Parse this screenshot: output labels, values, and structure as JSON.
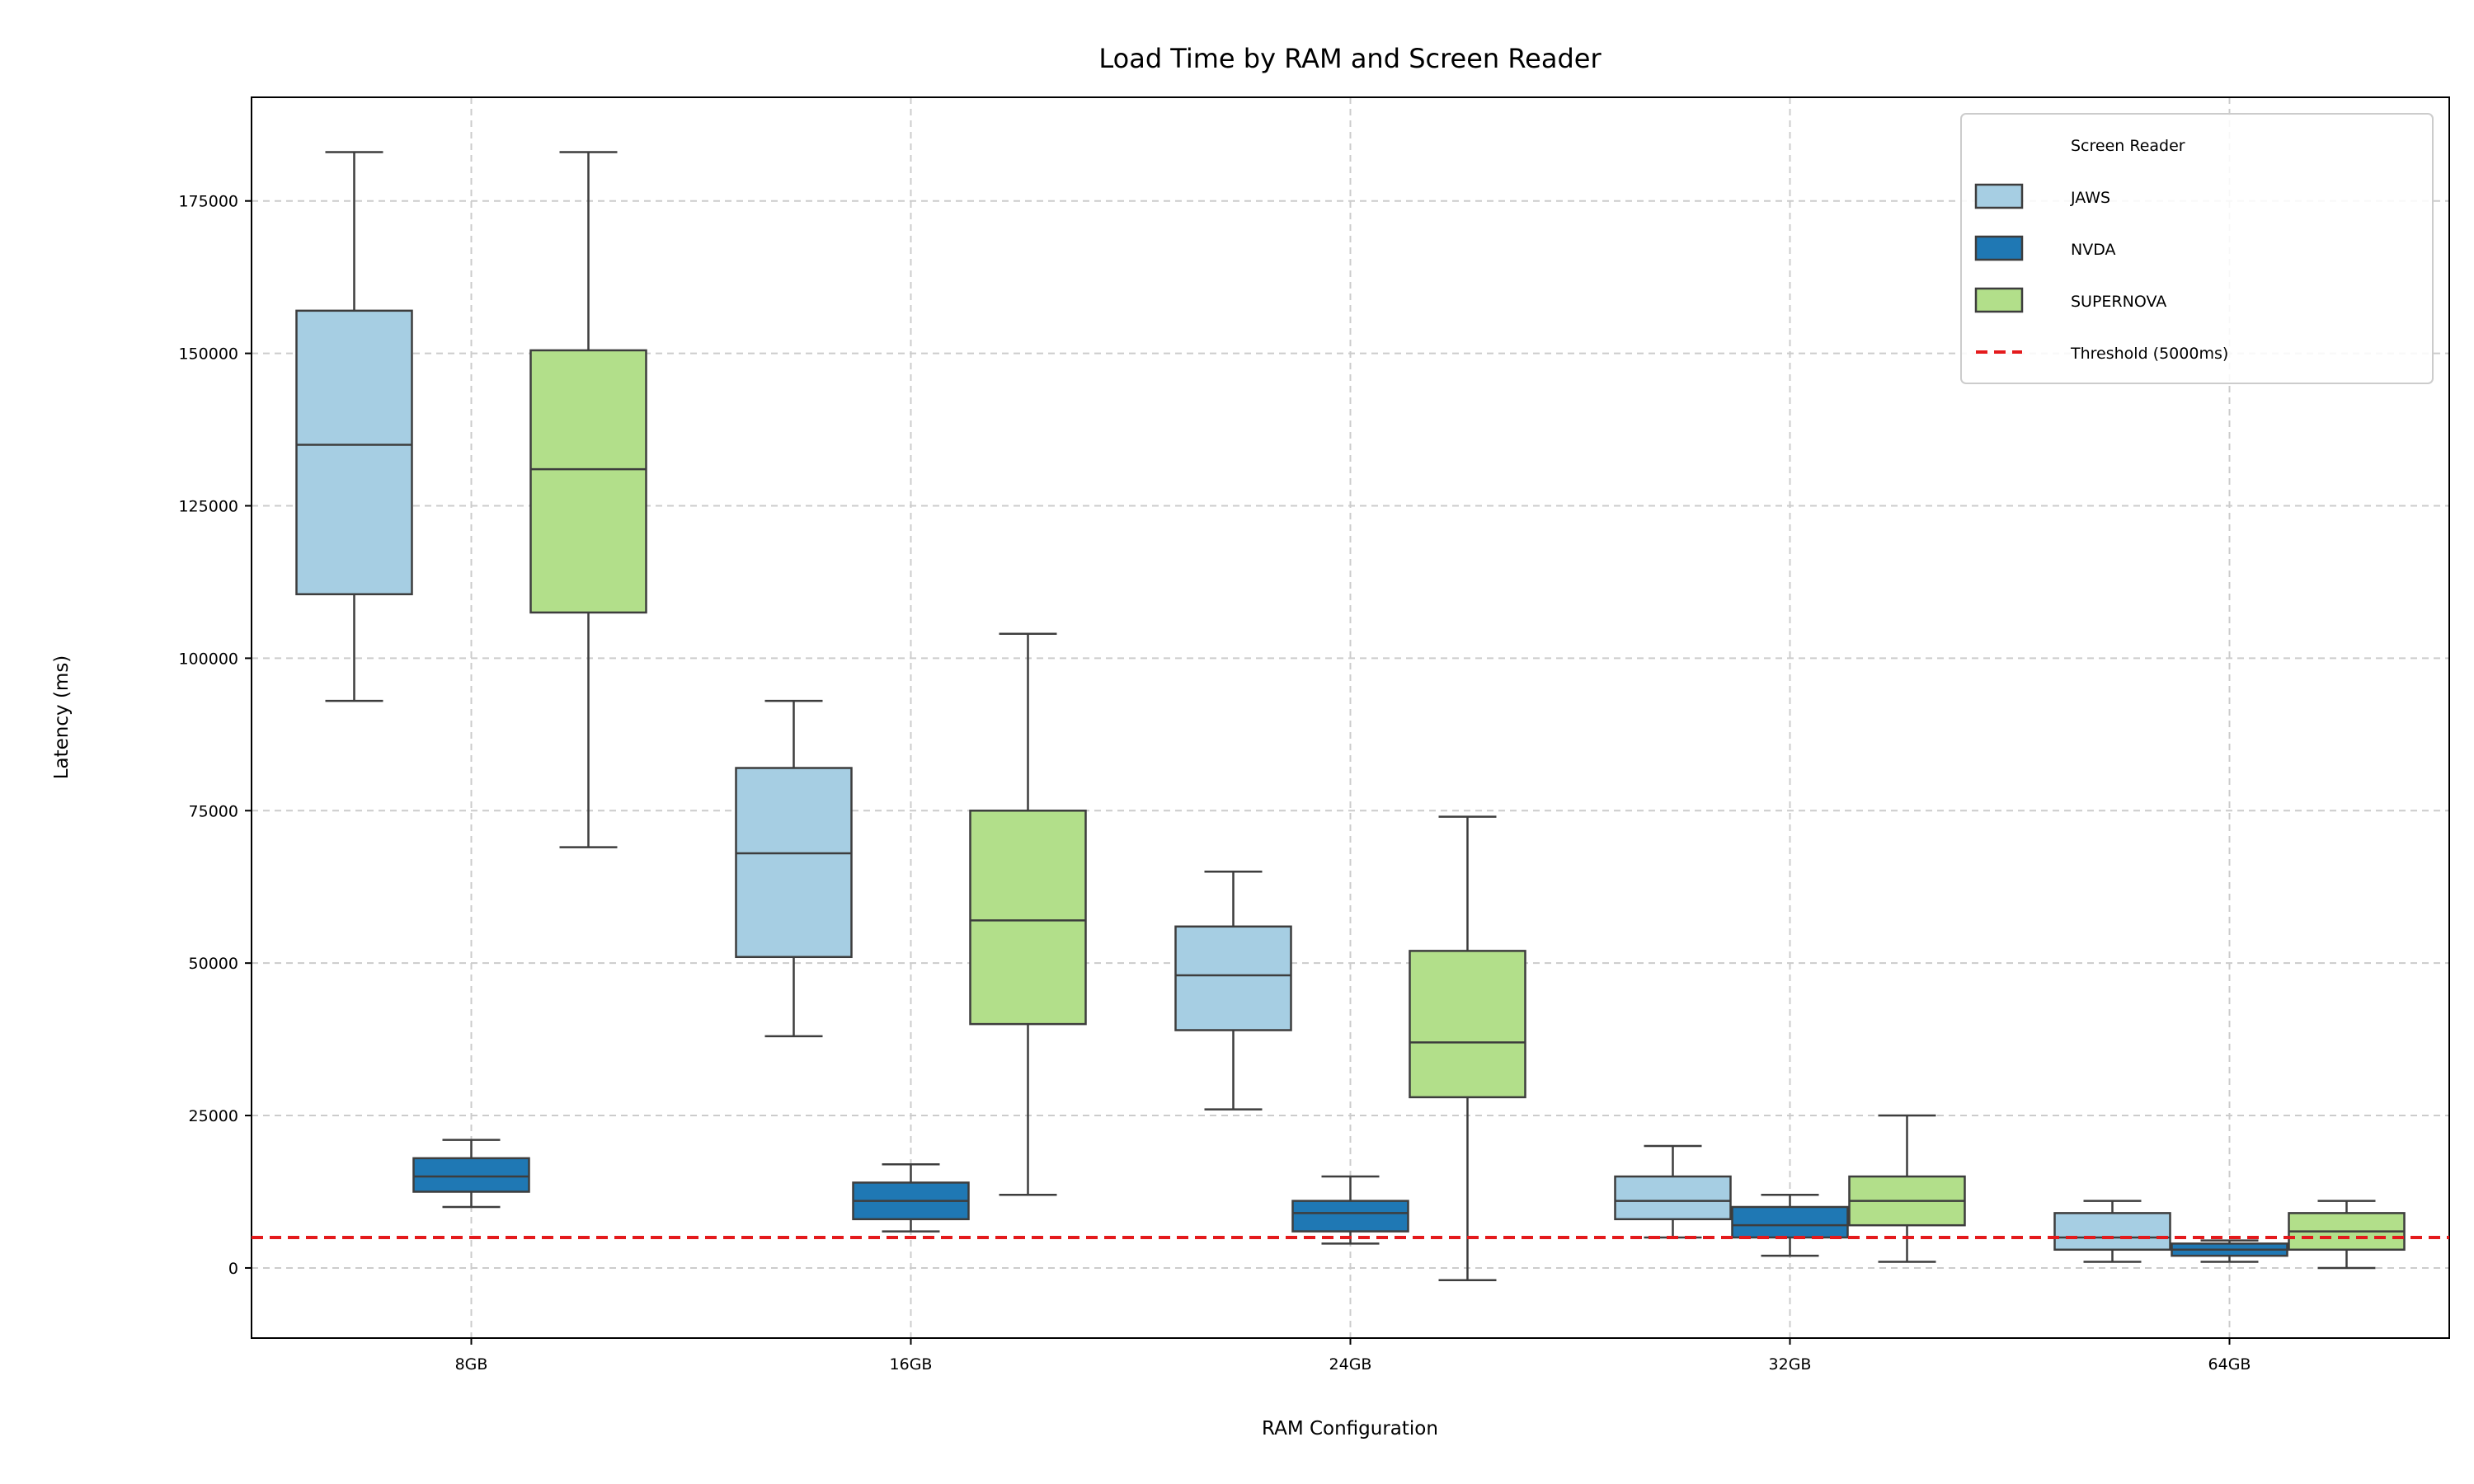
{
  "chart_data": {
    "type": "box",
    "title": "Load Time by RAM and Screen Reader",
    "xlabel": "RAM Configuration",
    "ylabel": "Latency (ms)",
    "categories": [
      "8GB",
      "16GB",
      "24GB",
      "32GB",
      "64GB"
    ],
    "yticks": [
      0,
      25000,
      50000,
      75000,
      100000,
      125000,
      150000,
      175000
    ],
    "ylim": [
      -11500,
      192000
    ],
    "grid": true,
    "legend": {
      "title": "Screen Reader",
      "placement": "top-right",
      "threshold_label": "Threshold (5000ms)"
    },
    "threshold": {
      "value": 5000,
      "color": "#e41a1c",
      "style": "dashed"
    },
    "series": [
      {
        "name": "JAWS",
        "color": "#a6cee3",
        "boxes": [
          {
            "whisker_low": 93000,
            "q1": 110500,
            "median": 135000,
            "q3": 157000,
            "whisker_high": 183000
          },
          {
            "whisker_low": 38000,
            "q1": 51000,
            "median": 68000,
            "q3": 82000,
            "whisker_high": 93000
          },
          {
            "whisker_low": 26000,
            "q1": 39000,
            "median": 48000,
            "q3": 56000,
            "whisker_high": 65000
          },
          {
            "whisker_low": 5000,
            "q1": 8000,
            "median": 11000,
            "q3": 15000,
            "whisker_high": 20000
          },
          {
            "whisker_low": 1000,
            "q1": 3000,
            "median": 5000,
            "q3": 9000,
            "whisker_high": 11000
          }
        ]
      },
      {
        "name": "NVDA",
        "color": "#1f78b4",
        "boxes": [
          {
            "whisker_low": 10000,
            "q1": 12500,
            "median": 15000,
            "q3": 18000,
            "whisker_high": 21000
          },
          {
            "whisker_low": 6000,
            "q1": 8000,
            "median": 11000,
            "q3": 14000,
            "whisker_high": 17000
          },
          {
            "whisker_low": 4000,
            "q1": 6000,
            "median": 9000,
            "q3": 11000,
            "whisker_high": 15000
          },
          {
            "whisker_low": 2000,
            "q1": 5000,
            "median": 7000,
            "q3": 10000,
            "whisker_high": 12000
          },
          {
            "whisker_low": 1000,
            "q1": 2000,
            "median": 3000,
            "q3": 4000,
            "whisker_high": 4500
          }
        ]
      },
      {
        "name": "SUPERNOVA",
        "color": "#b2df8a",
        "boxes": [
          {
            "whisker_low": 69000,
            "q1": 107500,
            "median": 131000,
            "q3": 150500,
            "whisker_high": 183000
          },
          {
            "whisker_low": 12000,
            "q1": 40000,
            "median": 57000,
            "q3": 75000,
            "whisker_high": 104000
          },
          {
            "whisker_low": -2000,
            "q1": 28000,
            "median": 37000,
            "q3": 52000,
            "whisker_high": 74000
          },
          {
            "whisker_low": 1000,
            "q1": 7000,
            "median": 11000,
            "q3": 15000,
            "whisker_high": 25000
          },
          {
            "whisker_low": 0,
            "q1": 3000,
            "median": 6000,
            "q3": 9000,
            "whisker_high": 11000
          }
        ]
      }
    ]
  }
}
